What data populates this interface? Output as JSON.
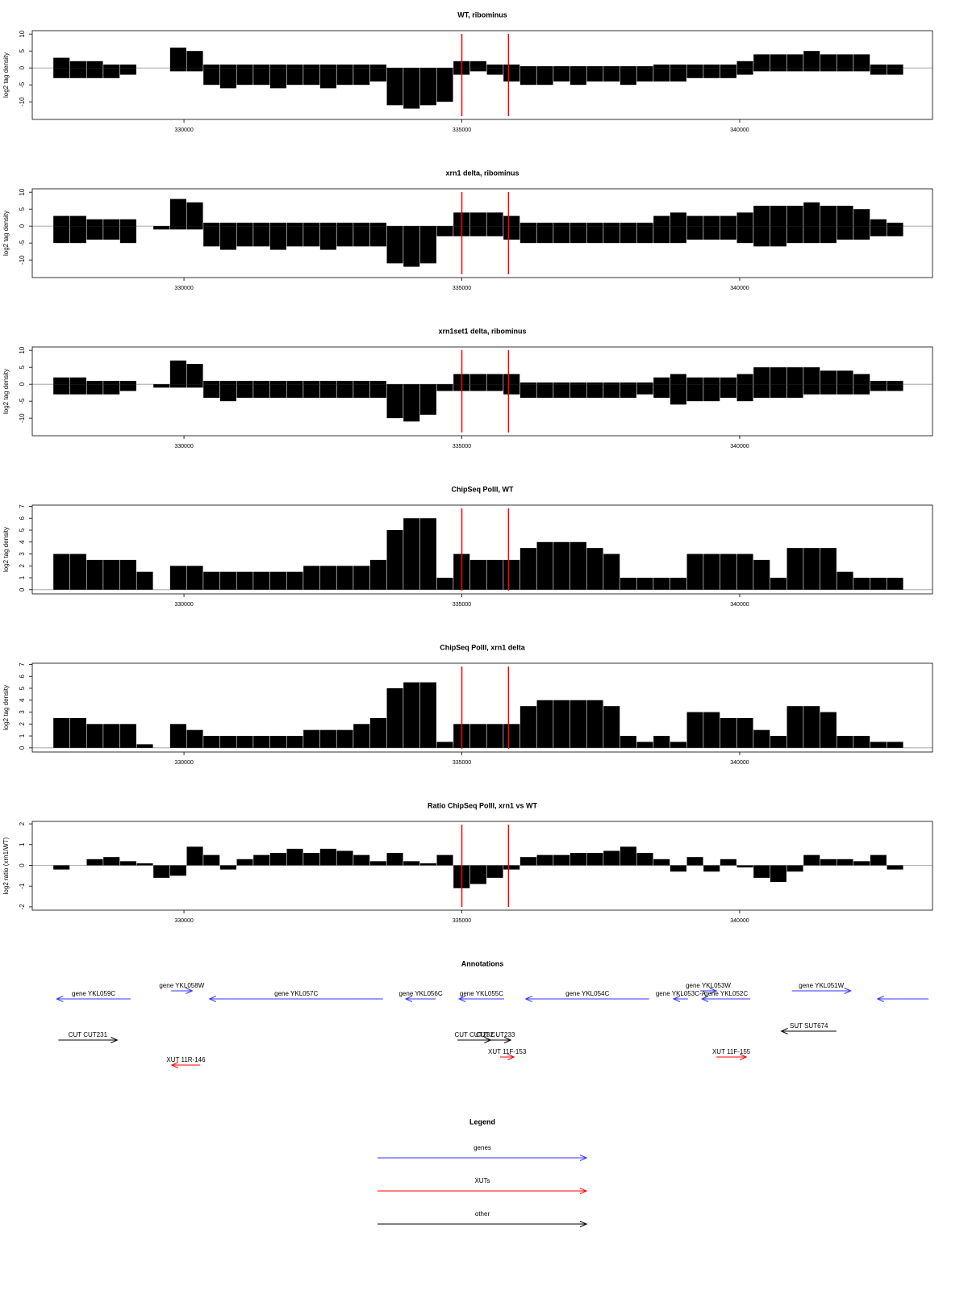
{
  "chart_data": [
    {
      "type": "bar",
      "title": "WT, ribominus",
      "ylabel": "log2 tag density",
      "x": [
        327800,
        328100,
        328400,
        328700,
        329000,
        329300,
        329600,
        329900,
        330200,
        330500,
        330800,
        331100,
        331400,
        331700,
        332000,
        332300,
        332600,
        332900,
        333200,
        333500,
        333800,
        334100,
        334400,
        334700,
        335000,
        335300,
        335600,
        335900,
        336200,
        336500,
        336800,
        337100,
        337400,
        337700,
        338000,
        338300,
        338600,
        338900,
        339200,
        339500,
        339800,
        340100,
        340400,
        340700,
        341000,
        341300,
        341600,
        341900,
        342200,
        342500,
        342800
      ],
      "series": [
        {
          "color": "#000000",
          "values": [
            3,
            2,
            2,
            1,
            1,
            0,
            0,
            6,
            5,
            1,
            1,
            1,
            1,
            1,
            1,
            1,
            1,
            1,
            1,
            1,
            0,
            0,
            0,
            0,
            2,
            2,
            1,
            1,
            0.5,
            0.5,
            0.5,
            0.5,
            0.5,
            0.5,
            0.5,
            0.5,
            1,
            1,
            1,
            1,
            1,
            2,
            4,
            4,
            4,
            5,
            4,
            4,
            4,
            1,
            1
          ]
        },
        {
          "color": "#000000",
          "values": [
            -3,
            -3,
            -3,
            -3,
            -2,
            0,
            0,
            -1,
            -1,
            -5,
            -6,
            -5,
            -5,
            -6,
            -5,
            -5,
            -6,
            -5,
            -5,
            -4,
            -11,
            -12,
            -11,
            -10,
            -2,
            -1,
            -2,
            -4,
            -5,
            -5,
            -4,
            -5,
            -4,
            -4,
            -5,
            -4,
            -4,
            -4,
            -3,
            -3,
            -3,
            -2,
            -1,
            -1,
            -1,
            -1,
            -1,
            -1,
            -1,
            -2,
            -2
          ]
        }
      ],
      "xlim": [
        327270,
        343470
      ],
      "xticks": [
        330000,
        335000,
        340000
      ],
      "ylim": [
        -15.2,
        11
      ],
      "yticks": [
        -10,
        -5,
        0,
        5,
        10
      ],
      "vlines": [
        335000,
        335840
      ],
      "vline_color": "#ff0000"
    },
    {
      "type": "bar",
      "title": "xrn1 delta, ribominus",
      "ylabel": "log2 tag density",
      "x": [
        327800,
        328100,
        328400,
        328700,
        329000,
        329300,
        329600,
        329900,
        330200,
        330500,
        330800,
        331100,
        331400,
        331700,
        332000,
        332300,
        332600,
        332900,
        333200,
        333500,
        333800,
        334100,
        334400,
        334700,
        335000,
        335300,
        335600,
        335900,
        336200,
        336500,
        336800,
        337100,
        337400,
        337700,
        338000,
        338300,
        338600,
        338900,
        339200,
        339500,
        339800,
        340100,
        340400,
        340700,
        341000,
        341300,
        341600,
        341900,
        342200,
        342500,
        342800
      ],
      "series": [
        {
          "color": "#000000",
          "values": [
            3,
            3,
            2,
            2,
            2,
            0,
            0,
            8,
            7,
            1,
            1,
            1,
            1,
            1,
            1,
            1,
            1,
            1,
            1,
            1,
            0,
            0,
            0,
            0,
            4,
            4,
            4,
            3,
            1,
            1,
            1,
            1,
            1,
            1,
            1,
            1,
            3,
            4,
            3,
            3,
            3,
            4,
            6,
            6,
            6,
            7,
            6,
            6,
            5,
            2,
            1
          ]
        },
        {
          "color": "#000000",
          "values": [
            -5,
            -5,
            -4,
            -4,
            -5,
            0,
            -1,
            -1,
            -1,
            -6,
            -7,
            -6,
            -6,
            -7,
            -6,
            -6,
            -7,
            -6,
            -6,
            -6,
            -11,
            -12,
            -11,
            -3,
            -3,
            -3,
            -3,
            -4,
            -5,
            -5,
            -5,
            -5,
            -5,
            -5,
            -5,
            -5,
            -5,
            -5,
            -4,
            -4,
            -4,
            -5,
            -6,
            -6,
            -5,
            -5,
            -5,
            -4,
            -4,
            -3,
            -3
          ]
        }
      ],
      "xlim": [
        327270,
        343470
      ],
      "xticks": [
        330000,
        335000,
        340000
      ],
      "ylim": [
        -15.2,
        11
      ],
      "yticks": [
        -10,
        -5,
        0,
        5,
        10
      ],
      "vlines": [
        335000,
        335840
      ],
      "vline_color": "#ff0000"
    },
    {
      "type": "bar",
      "title": "xrn1set1 delta, ribominus",
      "ylabel": "log2 tag density",
      "x": [
        327800,
        328100,
        328400,
        328700,
        329000,
        329300,
        329600,
        329900,
        330200,
        330500,
        330800,
        331100,
        331400,
        331700,
        332000,
        332300,
        332600,
        332900,
        333200,
        333500,
        333800,
        334100,
        334400,
        334700,
        335000,
        335300,
        335600,
        335900,
        336200,
        336500,
        336800,
        337100,
        337400,
        337700,
        338000,
        338300,
        338600,
        338900,
        339200,
        339500,
        339800,
        340100,
        340400,
        340700,
        341000,
        341300,
        341600,
        341900,
        342200,
        342500,
        342800
      ],
      "series": [
        {
          "color": "#000000",
          "values": [
            2,
            2,
            1,
            1,
            1,
            0,
            0,
            7,
            6,
            1,
            1,
            1,
            1,
            1,
            1,
            1,
            1,
            1,
            1,
            1,
            0,
            0,
            0,
            0,
            3,
            3,
            3,
            3,
            0.5,
            0.5,
            0.5,
            0.5,
            0.5,
            0.5,
            0.5,
            0.5,
            2,
            3,
            2,
            2,
            2,
            3,
            5,
            5,
            5,
            5,
            4,
            4,
            3,
            1,
            1
          ]
        },
        {
          "color": "#000000",
          "values": [
            -3,
            -3,
            -3,
            -3,
            -2,
            0,
            -1,
            -1,
            -1,
            -4,
            -5,
            -4,
            -4,
            -4,
            -4,
            -4,
            -4,
            -4,
            -4,
            -4,
            -10,
            -11,
            -9,
            -2,
            -2,
            -2,
            -2,
            -3,
            -4,
            -4,
            -4,
            -4,
            -4,
            -4,
            -4,
            -3,
            -4,
            -6,
            -5,
            -5,
            -4,
            -5,
            -4,
            -4,
            -4,
            -3,
            -3,
            -3,
            -3,
            -2,
            -2
          ]
        }
      ],
      "xlim": [
        327270,
        343470
      ],
      "xticks": [
        330000,
        335000,
        340000
      ],
      "ylim": [
        -15.2,
        11
      ],
      "yticks": [
        -10,
        -5,
        0,
        5,
        10
      ],
      "vlines": [
        335000,
        335840
      ],
      "vline_color": "#ff0000"
    },
    {
      "type": "bar",
      "title": "ChipSeq PolII, WT",
      "ylabel": "log2 tag density",
      "x": [
        327800,
        328100,
        328400,
        328700,
        329000,
        329300,
        329600,
        329900,
        330200,
        330500,
        330800,
        331100,
        331400,
        331700,
        332000,
        332300,
        332600,
        332900,
        333200,
        333500,
        333800,
        334100,
        334400,
        334700,
        335000,
        335300,
        335600,
        335900,
        336200,
        336500,
        336800,
        337100,
        337400,
        337700,
        338000,
        338300,
        338600,
        338900,
        339200,
        339500,
        339800,
        340100,
        340400,
        340700,
        341000,
        341300,
        341600,
        341900,
        342200,
        342500,
        342800
      ],
      "color": "#000000",
      "values": [
        3,
        3,
        2.5,
        2.5,
        2.5,
        1.5,
        0,
        2,
        2,
        1.5,
        1.5,
        1.5,
        1.5,
        1.5,
        1.5,
        2,
        2,
        2,
        2,
        2.5,
        5,
        6,
        6,
        1,
        3,
        2.5,
        2.5,
        2.5,
        3.5,
        4,
        4,
        4,
        3.5,
        3,
        1,
        1,
        1,
        1,
        3,
        3,
        3,
        3,
        2.5,
        1,
        3.5,
        3.5,
        3.5,
        1.5,
        1,
        1,
        1
      ],
      "xlim": [
        327270,
        343470
      ],
      "xticks": [
        330000,
        335000,
        340000
      ],
      "ylim": [
        -0.35,
        7.1
      ],
      "yticks": [
        0,
        1,
        2,
        3,
        4,
        5,
        6,
        7
      ],
      "vlines": [
        335000,
        335840
      ],
      "vline_color": "#ff0000"
    },
    {
      "type": "bar",
      "title": "ChipSeq PolII, xrn1 delta",
      "ylabel": "log2 tag density",
      "x": [
        327800,
        328100,
        328400,
        328700,
        329000,
        329300,
        329600,
        329900,
        330200,
        330500,
        330800,
        331100,
        331400,
        331700,
        332000,
        332300,
        332600,
        332900,
        333200,
        333500,
        333800,
        334100,
        334400,
        334700,
        335000,
        335300,
        335600,
        335900,
        336200,
        336500,
        336800,
        337100,
        337400,
        337700,
        338000,
        338300,
        338600,
        338900,
        339200,
        339500,
        339800,
        340100,
        340400,
        340700,
        341000,
        341300,
        341600,
        341900,
        342200,
        342500,
        342800
      ],
      "color": "#000000",
      "values": [
        2.5,
        2.5,
        2,
        2,
        2,
        0.3,
        0,
        2,
        1.5,
        1,
        1,
        1,
        1,
        1,
        1,
        1.5,
        1.5,
        1.5,
        2,
        2.5,
        5,
        5.5,
        5.5,
        0.5,
        2,
        2,
        2,
        2,
        3.5,
        4,
        4,
        4,
        4,
        3.5,
        1,
        0.5,
        1,
        0.5,
        3,
        3,
        2.5,
        2.5,
        1.5,
        1,
        3.5,
        3.5,
        3,
        1,
        1,
        0.5,
        0.5
      ],
      "xlim": [
        327270,
        343470
      ],
      "xticks": [
        330000,
        335000,
        340000
      ],
      "ylim": [
        -0.35,
        7.1
      ],
      "yticks": [
        0,
        1,
        2,
        3,
        4,
        5,
        6,
        7
      ],
      "vlines": [
        335000,
        335840
      ],
      "vline_color": "#ff0000"
    },
    {
      "type": "bar",
      "title": "Ratio ChipSeq PolII, xrn1 vs WT",
      "ylabel": "log2 ratio (xrn1/WT)",
      "x": [
        327800,
        328100,
        328400,
        328700,
        329000,
        329300,
        329600,
        329900,
        330200,
        330500,
        330800,
        331100,
        331400,
        331700,
        332000,
        332300,
        332600,
        332900,
        333200,
        333500,
        333800,
        334100,
        334400,
        334700,
        335000,
        335300,
        335600,
        335900,
        336200,
        336500,
        336800,
        337100,
        337400,
        337700,
        338000,
        338300,
        338600,
        338900,
        339200,
        339500,
        339800,
        340100,
        340400,
        340700,
        341000,
        341300,
        341600,
        341900,
        342200,
        342500,
        342800
      ],
      "color": "#000000",
      "values": [
        -0.2,
        0,
        0.3,
        0.4,
        0.2,
        0.1,
        -0.6,
        -0.5,
        0.9,
        0.5,
        -0.2,
        0.3,
        0.5,
        0.6,
        0.8,
        0.6,
        0.8,
        0.7,
        0.5,
        0.2,
        0.6,
        0.2,
        0.1,
        0.5,
        -1.1,
        -0.9,
        -0.6,
        -0.2,
        0.4,
        0.5,
        0.5,
        0.6,
        0.6,
        0.7,
        0.9,
        0.6,
        0.3,
        -0.3,
        0.4,
        -0.3,
        0.3,
        -0.1,
        -0.6,
        -0.8,
        -0.3,
        0.5,
        0.3,
        0.3,
        0.2,
        0.5,
        -0.2
      ],
      "xlim": [
        327270,
        343470
      ],
      "xticks": [
        330000,
        335000,
        340000
      ],
      "ylim": [
        -2.16,
        2.12
      ],
      "yticks": [
        -2,
        -1,
        0,
        1,
        2
      ],
      "vlines": [
        335000,
        335840
      ],
      "vline_color": "#ff0000"
    }
  ],
  "annotations": {
    "title": "Annotations",
    "xlim": [
      327270,
      343470
    ],
    "features": [
      {
        "label": "gene YKL059C",
        "color": "#3333ff",
        "start": 329040,
        "end": 327710
      },
      {
        "label": "gene YKL058W",
        "color": "#3333ff",
        "start": 329770,
        "end": 330150
      },
      {
        "label": "gene YKL057C",
        "color": "#3333ff",
        "start": 333580,
        "end": 330460
      },
      {
        "label": "gene YKL056C",
        "color": "#3333ff",
        "start": 334530,
        "end": 333990
      },
      {
        "label": "gene YKL055C",
        "color": "#3333ff",
        "start": 335760,
        "end": 334950
      },
      {
        "label": "gene YKL054C",
        "color": "#3333ff",
        "start": 338370,
        "end": 336150
      },
      {
        "label": "gene YKL053C-A",
        "color": "#3333ff",
        "start": 339070,
        "end": 338810
      },
      {
        "label": "gene YKL053W",
        "color": "#3333ff",
        "start": 339290,
        "end": 339580
      },
      {
        "label": "gene YKL052C",
        "color": "#3333ff",
        "start": 340190,
        "end": 339320
      },
      {
        "label": "gene YKL051W",
        "color": "#3333ff",
        "start": 340940,
        "end": 342000
      },
      {
        "label": null,
        "color": "#3333ff",
        "start": 343400,
        "end": 342480
      },
      {
        "label": "CUT CUT231",
        "color": "#000000",
        "start": 327740,
        "end": 328800
      },
      {
        "label": "CUT CUT232",
        "color": "#000000",
        "start": 334920,
        "end": 335520
      },
      {
        "label": "CUT CUT233",
        "color": "#000000",
        "start": 335330,
        "end": 335880
      },
      {
        "label": "SUT SUT674",
        "color": "#000000",
        "start": 341740,
        "end": 340750
      },
      {
        "label": "XUT 11R-146",
        "color": "#ff0000",
        "start": 330290,
        "end": 329780
      },
      {
        "label": "XUT 11F-153",
        "color": "#ff0000",
        "start": 335690,
        "end": 335940
      },
      {
        "label": "XUT 11F-155",
        "color": "#ff0000",
        "start": 339580,
        "end": 340120
      }
    ]
  },
  "legend": {
    "title": "Legend",
    "entries": [
      {
        "label": "genes",
        "color": "#3333ff"
      },
      {
        "label": "XUTs",
        "color": "#ff0000"
      },
      {
        "label": "other",
        "color": "#000000"
      }
    ]
  }
}
